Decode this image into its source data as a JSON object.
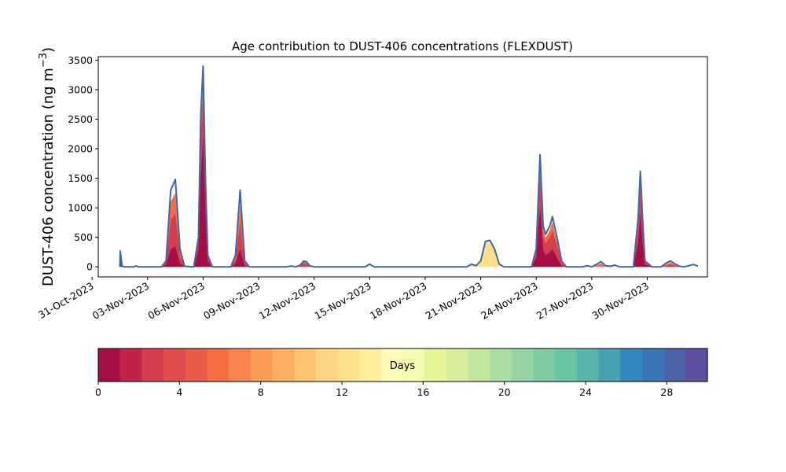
{
  "chart_data": {
    "type": "area",
    "title": "Age contribution to DUST-406 concentrations (FLEXDUST)",
    "ylabel_main": "DUST-406 concentration (ng m",
    "ylabel_exp": "−3",
    "ylabel_close": ")",
    "xlabel": "",
    "ylim": [
      -170,
      3560
    ],
    "x_date_range": [
      "2023-10-31T08:00",
      "2023-12-03T06:00"
    ],
    "yticks": [
      0,
      500,
      1000,
      1500,
      2000,
      2500,
      3000,
      3500
    ],
    "xticks": [
      {
        "date": "2023-10-31T00:00",
        "label": "31-Oct-2023"
      },
      {
        "date": "2023-11-03T00:00",
        "label": "03-Nov-2023"
      },
      {
        "date": "2023-11-06T00:00",
        "label": "06-Nov-2023"
      },
      {
        "date": "2023-11-09T00:00",
        "label": "09-Nov-2023"
      },
      {
        "date": "2023-11-12T00:00",
        "label": "12-Nov-2023"
      },
      {
        "date": "2023-11-15T00:00",
        "label": "15-Nov-2023"
      },
      {
        "date": "2023-11-18T00:00",
        "label": "18-Nov-2023"
      },
      {
        "date": "2023-11-21T00:00",
        "label": "21-Nov-2023"
      },
      {
        "date": "2023-11-24T00:00",
        "label": "24-Nov-2023"
      },
      {
        "date": "2023-11-27T00:00",
        "label": "27-Nov-2023"
      },
      {
        "date": "2023-11-30T00:00",
        "label": "30-Nov-2023"
      }
    ],
    "total_series": {
      "name": "Total",
      "color": "#3b68a8",
      "points": [
        [
          "2023-11-01T12:00",
          0
        ],
        [
          "2023-11-01T12:30",
          270
        ],
        [
          "2023-11-01T15:00",
          10
        ],
        [
          "2023-11-01T18:00",
          0
        ],
        [
          "2023-11-02T06:00",
          0
        ],
        [
          "2023-11-02T09:00",
          15
        ],
        [
          "2023-11-02T12:00",
          0
        ],
        [
          "2023-11-03T18:00",
          0
        ],
        [
          "2023-11-04T00:00",
          100
        ],
        [
          "2023-11-04T06:00",
          1300
        ],
        [
          "2023-11-04T12:00",
          1480
        ],
        [
          "2023-11-04T15:00",
          900
        ],
        [
          "2023-11-04T18:00",
          300
        ],
        [
          "2023-11-05T00:00",
          10
        ],
        [
          "2023-11-05T12:00",
          0
        ],
        [
          "2023-11-05T18:00",
          500
        ],
        [
          "2023-11-05T21:00",
          2600
        ],
        [
          "2023-11-06T00:00",
          3400
        ],
        [
          "2023-11-06T03:00",
          1500
        ],
        [
          "2023-11-06T06:00",
          200
        ],
        [
          "2023-11-06T12:00",
          0
        ],
        [
          "2023-11-07T12:00",
          0
        ],
        [
          "2023-11-07T18:00",
          200
        ],
        [
          "2023-11-08T00:00",
          1300
        ],
        [
          "2023-11-08T03:00",
          700
        ],
        [
          "2023-11-08T06:00",
          100
        ],
        [
          "2023-11-08T12:00",
          0
        ],
        [
          "2023-11-10T12:00",
          0
        ],
        [
          "2023-11-10T18:00",
          15
        ],
        [
          "2023-11-11T00:00",
          0
        ],
        [
          "2023-11-11T06:00",
          30
        ],
        [
          "2023-11-11T10:00",
          95
        ],
        [
          "2023-11-11T14:00",
          90
        ],
        [
          "2023-11-11T18:00",
          20
        ],
        [
          "2023-11-12T00:00",
          0
        ],
        [
          "2023-11-14T18:00",
          0
        ],
        [
          "2023-11-15T00:00",
          45
        ],
        [
          "2023-11-15T06:00",
          0
        ],
        [
          "2023-11-20T06:00",
          0
        ],
        [
          "2023-11-20T12:00",
          45
        ],
        [
          "2023-11-20T18:00",
          20
        ],
        [
          "2023-11-21T00:00",
          100
        ],
        [
          "2023-11-21T06:00",
          430
        ],
        [
          "2023-11-21T12:00",
          450
        ],
        [
          "2023-11-21T18:00",
          300
        ],
        [
          "2023-11-22T00:00",
          50
        ],
        [
          "2023-11-22T06:00",
          0
        ],
        [
          "2023-11-23T18:00",
          0
        ],
        [
          "2023-11-24T00:00",
          300
        ],
        [
          "2023-11-24T03:00",
          1300
        ],
        [
          "2023-11-24T05:00",
          1900
        ],
        [
          "2023-11-24T09:00",
          700
        ],
        [
          "2023-11-24T12:00",
          550
        ],
        [
          "2023-11-24T18:00",
          700
        ],
        [
          "2023-11-24T21:00",
          850
        ],
        [
          "2023-11-25T03:00",
          500
        ],
        [
          "2023-11-25T09:00",
          100
        ],
        [
          "2023-11-25T15:00",
          0
        ],
        [
          "2023-11-26T12:00",
          0
        ],
        [
          "2023-11-26T18:00",
          20
        ],
        [
          "2023-11-27T00:00",
          0
        ],
        [
          "2023-11-27T06:00",
          40
        ],
        [
          "2023-11-27T12:00",
          90
        ],
        [
          "2023-11-27T18:00",
          20
        ],
        [
          "2023-11-28T00:00",
          10
        ],
        [
          "2023-11-28T06:00",
          30
        ],
        [
          "2023-11-28T12:00",
          0
        ],
        [
          "2023-11-29T06:00",
          0
        ],
        [
          "2023-11-29T12:00",
          800
        ],
        [
          "2023-11-29T15:00",
          1620
        ],
        [
          "2023-11-29T18:00",
          800
        ],
        [
          "2023-11-29T21:00",
          100
        ],
        [
          "2023-11-30T06:00",
          0
        ],
        [
          "2023-11-30T18:00",
          0
        ],
        [
          "2023-12-01T00:00",
          60
        ],
        [
          "2023-12-01T06:00",
          100
        ],
        [
          "2023-12-01T12:00",
          50
        ],
        [
          "2023-12-01T18:00",
          10
        ],
        [
          "2023-12-02T00:00",
          0
        ],
        [
          "2023-12-02T06:00",
          20
        ],
        [
          "2023-12-02T12:00",
          40
        ],
        [
          "2023-12-02T18:00",
          10
        ]
      ]
    },
    "age_bands": [
      {
        "color": "#a50f45",
        "points": [
          [
            "2023-11-01T12:00",
            0
          ],
          [
            "2023-11-01T12:30",
            150
          ],
          [
            "2023-11-01T15:00",
            5
          ],
          [
            "2023-11-01T18:00",
            0
          ],
          [
            "2023-11-03T18:00",
            0
          ],
          [
            "2023-11-04T00:00",
            40
          ],
          [
            "2023-11-04T06:00",
            300
          ],
          [
            "2023-11-04T12:00",
            350
          ],
          [
            "2023-11-04T15:00",
            200
          ],
          [
            "2023-11-04T18:00",
            60
          ],
          [
            "2023-11-05T00:00",
            0
          ],
          [
            "2023-11-05T12:00",
            0
          ],
          [
            "2023-11-05T18:00",
            300
          ],
          [
            "2023-11-05T21:00",
            1500
          ],
          [
            "2023-11-06T00:00",
            2200
          ],
          [
            "2023-11-06T03:00",
            900
          ],
          [
            "2023-11-06T06:00",
            100
          ],
          [
            "2023-11-06T12:00",
            0
          ],
          [
            "2023-11-07T12:00",
            0
          ],
          [
            "2023-11-07T18:00",
            50
          ],
          [
            "2023-11-08T00:00",
            300
          ],
          [
            "2023-11-08T03:00",
            150
          ],
          [
            "2023-11-08T06:00",
            20
          ],
          [
            "2023-11-08T12:00",
            0
          ],
          [
            "2023-11-23T18:00",
            0
          ],
          [
            "2023-11-24T00:00",
            150
          ],
          [
            "2023-11-24T03:00",
            700
          ],
          [
            "2023-11-24T05:00",
            1000
          ],
          [
            "2023-11-24T09:00",
            300
          ],
          [
            "2023-11-24T12:00",
            200
          ],
          [
            "2023-11-24T18:00",
            250
          ],
          [
            "2023-11-24T21:00",
            300
          ],
          [
            "2023-11-25T03:00",
            150
          ],
          [
            "2023-11-25T09:00",
            20
          ],
          [
            "2023-11-25T15:00",
            0
          ],
          [
            "2023-11-29T06:00",
            0
          ],
          [
            "2023-11-29T12:00",
            400
          ],
          [
            "2023-11-29T15:00",
            900
          ],
          [
            "2023-11-29T18:00",
            400
          ],
          [
            "2023-11-29T21:00",
            40
          ],
          [
            "2023-11-30T06:00",
            0
          ]
        ]
      },
      {
        "color": "#d53e4f",
        "points": [
          [
            "2023-11-01T12:00",
            0
          ],
          [
            "2023-11-01T12:30",
            200
          ],
          [
            "2023-11-01T15:00",
            8
          ],
          [
            "2023-11-01T18:00",
            0
          ],
          [
            "2023-11-03T18:00",
            0
          ],
          [
            "2023-11-04T00:00",
            70
          ],
          [
            "2023-11-04T06:00",
            800
          ],
          [
            "2023-11-04T12:00",
            900
          ],
          [
            "2023-11-04T15:00",
            550
          ],
          [
            "2023-11-04T18:00",
            180
          ],
          [
            "2023-11-05T00:00",
            5
          ],
          [
            "2023-11-05T12:00",
            0
          ],
          [
            "2023-11-05T18:00",
            400
          ],
          [
            "2023-11-05T21:00",
            2200
          ],
          [
            "2023-11-06T00:00",
            2900
          ],
          [
            "2023-11-06T03:00",
            1250
          ],
          [
            "2023-11-06T06:00",
            160
          ],
          [
            "2023-11-06T12:00",
            0
          ],
          [
            "2023-11-07T12:00",
            0
          ],
          [
            "2023-11-07T18:00",
            120
          ],
          [
            "2023-11-08T00:00",
            750
          ],
          [
            "2023-11-08T03:00",
            400
          ],
          [
            "2023-11-08T06:00",
            60
          ],
          [
            "2023-11-08T12:00",
            0
          ],
          [
            "2023-11-10T12:00",
            0
          ],
          [
            "2023-11-11T06:00",
            15
          ],
          [
            "2023-11-11T10:00",
            60
          ],
          [
            "2023-11-11T14:00",
            55
          ],
          [
            "2023-11-11T18:00",
            10
          ],
          [
            "2023-11-12T00:00",
            0
          ],
          [
            "2023-11-23T18:00",
            0
          ],
          [
            "2023-11-24T00:00",
            250
          ],
          [
            "2023-11-24T03:00",
            1050
          ],
          [
            "2023-11-24T05:00",
            1500
          ],
          [
            "2023-11-24T09:00",
            520
          ],
          [
            "2023-11-24T12:00",
            400
          ],
          [
            "2023-11-24T18:00",
            500
          ],
          [
            "2023-11-24T21:00",
            600
          ],
          [
            "2023-11-25T03:00",
            350
          ],
          [
            "2023-11-25T09:00",
            60
          ],
          [
            "2023-11-25T15:00",
            0
          ],
          [
            "2023-11-29T06:00",
            0
          ],
          [
            "2023-11-29T12:00",
            620
          ],
          [
            "2023-11-29T15:00",
            1300
          ],
          [
            "2023-11-29T18:00",
            620
          ],
          [
            "2023-11-29T21:00",
            70
          ],
          [
            "2023-11-30T06:00",
            0
          ],
          [
            "2023-11-30T18:00",
            0
          ],
          [
            "2023-12-01T00:00",
            20
          ],
          [
            "2023-12-01T06:00",
            40
          ],
          [
            "2023-12-01T12:00",
            20
          ],
          [
            "2023-12-01T18:00",
            0
          ]
        ]
      },
      {
        "color": "#f46d43",
        "points": [
          [
            "2023-11-01T12:00",
            0
          ],
          [
            "2023-11-01T12:30",
            230
          ],
          [
            "2023-11-01T15:00",
            9
          ],
          [
            "2023-11-01T18:00",
            0
          ],
          [
            "2023-11-03T18:00",
            0
          ],
          [
            "2023-11-04T00:00",
            85
          ],
          [
            "2023-11-04T06:00",
            1100
          ],
          [
            "2023-11-04T12:00",
            1250
          ],
          [
            "2023-11-04T15:00",
            760
          ],
          [
            "2023-11-04T18:00",
            250
          ],
          [
            "2023-11-05T00:00",
            8
          ],
          [
            "2023-11-05T12:00",
            0
          ],
          [
            "2023-11-05T18:00",
            450
          ],
          [
            "2023-11-05T21:00",
            2450
          ],
          [
            "2023-11-06T00:00",
            3200
          ],
          [
            "2023-11-06T03:00",
            1400
          ],
          [
            "2023-11-06T06:00",
            185
          ],
          [
            "2023-11-06T12:00",
            0
          ],
          [
            "2023-11-07T12:00",
            0
          ],
          [
            "2023-11-07T18:00",
            170
          ],
          [
            "2023-11-08T00:00",
            1050
          ],
          [
            "2023-11-08T03:00",
            580
          ],
          [
            "2023-11-08T06:00",
            85
          ],
          [
            "2023-11-08T12:00",
            0
          ],
          [
            "2023-11-10T12:00",
            0
          ],
          [
            "2023-11-11T06:00",
            22
          ],
          [
            "2023-11-11T10:00",
            80
          ],
          [
            "2023-11-11T14:00",
            75
          ],
          [
            "2023-11-11T18:00",
            16
          ],
          [
            "2023-11-12T00:00",
            0
          ],
          [
            "2023-11-23T18:00",
            0
          ],
          [
            "2023-11-24T00:00",
            280
          ],
          [
            "2023-11-24T03:00",
            1200
          ],
          [
            "2023-11-24T05:00",
            1750
          ],
          [
            "2023-11-24T09:00",
            630
          ],
          [
            "2023-11-24T12:00",
            490
          ],
          [
            "2023-11-24T18:00",
            630
          ],
          [
            "2023-11-24T21:00",
            760
          ],
          [
            "2023-11-25T03:00",
            440
          ],
          [
            "2023-11-25T09:00",
            85
          ],
          [
            "2023-11-25T15:00",
            0
          ],
          [
            "2023-11-26T12:00",
            0
          ],
          [
            "2023-11-27T06:00",
            25
          ],
          [
            "2023-11-27T12:00",
            60
          ],
          [
            "2023-11-27T18:00",
            12
          ],
          [
            "2023-11-28T00:00",
            0
          ],
          [
            "2023-11-29T06:00",
            0
          ],
          [
            "2023-11-29T12:00",
            730
          ],
          [
            "2023-11-29T15:00",
            1500
          ],
          [
            "2023-11-29T18:00",
            730
          ],
          [
            "2023-11-29T21:00",
            90
          ],
          [
            "2023-11-30T06:00",
            0
          ],
          [
            "2023-11-30T18:00",
            0
          ],
          [
            "2023-12-01T00:00",
            40
          ],
          [
            "2023-12-01T06:00",
            75
          ],
          [
            "2023-12-01T12:00",
            35
          ],
          [
            "2023-12-01T18:00",
            5
          ],
          [
            "2023-12-02T00:00",
            0
          ]
        ]
      },
      {
        "color": "#fee08b",
        "points": [
          [
            "2023-11-20T06:00",
            0
          ],
          [
            "2023-11-20T12:00",
            35
          ],
          [
            "2023-11-20T18:00",
            15
          ],
          [
            "2023-11-21T00:00",
            90
          ],
          [
            "2023-11-21T06:00",
            400
          ],
          [
            "2023-11-21T12:00",
            420
          ],
          [
            "2023-11-21T18:00",
            280
          ],
          [
            "2023-11-22T00:00",
            45
          ],
          [
            "2023-11-22T06:00",
            0
          ]
        ]
      }
    ],
    "colorbar": {
      "label": "Days",
      "range": [
        0,
        30
      ],
      "ticks": [
        0,
        4,
        8,
        12,
        16,
        20,
        24,
        28
      ],
      "colors": [
        "#a50f45",
        "#bf2448",
        "#d53e4f",
        "#de4d4b",
        "#e85b48",
        "#f46d43",
        "#f7844e",
        "#fa9b58",
        "#fdb063",
        "#fdc372",
        "#fed683",
        "#fee08b",
        "#ffee9c",
        "#fffbb8",
        "#f6fbb2",
        "#e6f598",
        "#d6ee9b",
        "#c2e59f",
        "#abdda4",
        "#96d4a4",
        "#7fcba4",
        "#6bc4a4",
        "#58b3ab",
        "#46a0b2",
        "#3288bd",
        "#3b75b4",
        "#4f60aa",
        "#5e4fa2"
      ]
    }
  }
}
